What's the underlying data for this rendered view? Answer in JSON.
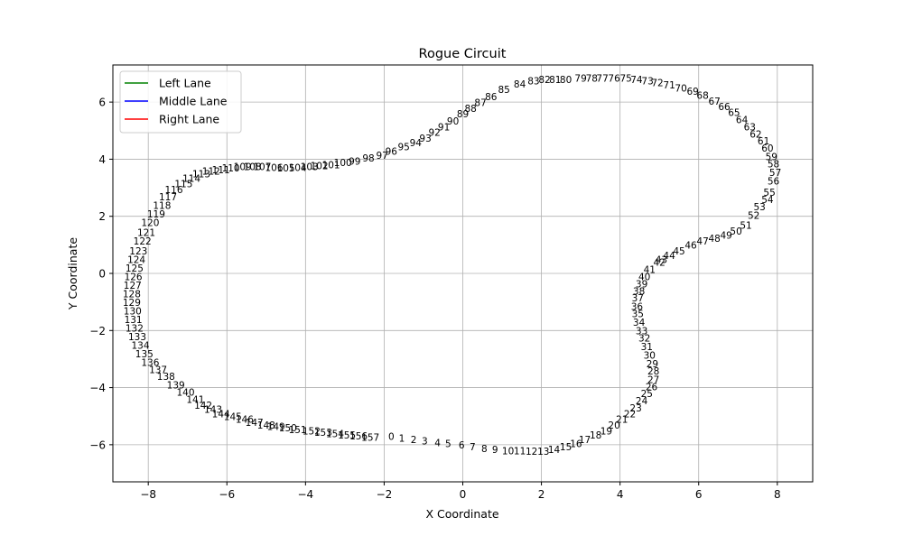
{
  "chart_data": {
    "type": "line",
    "title": "Rogue Circuit",
    "xlabel": "X Coordinate",
    "ylabel": "Y Coordinate",
    "xlim": [
      -8.9,
      8.9
    ],
    "ylim": [
      -7.3,
      7.3
    ],
    "xticks": [
      -8,
      -6,
      -4,
      -2,
      0,
      2,
      4,
      6,
      8
    ],
    "yticks": [
      -6,
      -4,
      -2,
      0,
      2,
      4,
      6
    ],
    "grid": true,
    "legend": "top-left",
    "series": [
      {
        "name": "Left Lane",
        "color": "#008000"
      },
      {
        "name": "Middle Lane",
        "color": "#0000ff"
      },
      {
        "name": "Right Lane",
        "color": "#ff0000"
      }
    ],
    "waypoint_x": [
      -1.82,
      -1.55,
      -1.25,
      -0.97,
      -0.64,
      -0.37,
      -0.03,
      0.25,
      0.55,
      0.82,
      1.15,
      1.45,
      1.75,
      2.05,
      2.32,
      2.62,
      2.88,
      3.1,
      3.38,
      3.65,
      3.85,
      4.05,
      4.25,
      4.4,
      4.55,
      4.68,
      4.8,
      4.85,
      4.85,
      4.82,
      4.75,
      4.68,
      4.62,
      4.55,
      4.48,
      4.45,
      4.43,
      4.45,
      4.48,
      4.55,
      4.62,
      4.75,
      5.0,
      5.05,
      5.25,
      5.5,
      5.8,
      6.1,
      6.4,
      6.7,
      6.95,
      7.2,
      7.4,
      7.55,
      7.75,
      7.8,
      7.9,
      7.95,
      7.9,
      7.85,
      7.75,
      7.65,
      7.45,
      7.3,
      7.1,
      6.9,
      6.65,
      6.4,
      6.1,
      5.85,
      5.55,
      5.25,
      4.95,
      4.7,
      4.42,
      4.15,
      3.85,
      3.55,
      3.28,
      3.0,
      2.62,
      2.35,
      2.08,
      1.8,
      1.45,
      1.05,
      0.72,
      0.45,
      0.2,
      0.0,
      -0.25,
      -0.48,
      -0.72,
      -0.95,
      -1.2,
      -1.5,
      -1.82,
      -2.05,
      -2.4,
      -2.75,
      -3.05,
      -3.35,
      -3.65,
      -3.9,
      -4.2,
      -4.5,
      -4.8,
      -5.1,
      -5.35,
      -5.6,
      -5.9,
      -6.15,
      -6.4,
      -6.65,
      -6.9,
      -7.1,
      -7.35,
      -7.5,
      -7.65,
      -7.8,
      -7.95,
      -8.05,
      -8.15,
      -8.25,
      -8.3,
      -8.35,
      -8.38,
      -8.4,
      -8.42,
      -8.42,
      -8.4,
      -8.38,
      -8.35,
      -8.28,
      -8.2,
      -8.1,
      -7.95,
      -7.75,
      -7.55,
      -7.3,
      -7.05,
      -6.8,
      -6.6,
      -6.35,
      -6.15,
      -5.85,
      -5.55,
      -5.3,
      -5.0,
      -4.75,
      -4.45,
      -4.2,
      -3.85,
      -3.55,
      -3.25,
      -2.95,
      -2.65,
      -2.35,
      -2.1
    ],
    "waypoint_y": [
      -5.9,
      -5.95,
      -6.0,
      -6.05,
      -6.12,
      -6.15,
      -6.2,
      -6.25,
      -6.32,
      -6.35,
      -6.4,
      -6.4,
      -6.42,
      -6.42,
      -6.35,
      -6.25,
      -6.15,
      -6.0,
      -5.85,
      -5.7,
      -5.5,
      -5.3,
      -5.1,
      -4.9,
      -4.65,
      -4.4,
      -4.15,
      -3.9,
      -3.6,
      -3.35,
      -3.05,
      -2.75,
      -2.45,
      -2.2,
      -1.9,
      -1.6,
      -1.35,
      -1.05,
      -0.8,
      -0.55,
      -0.3,
      -0.05,
      0.2,
      0.3,
      0.45,
      0.6,
      0.8,
      0.95,
      1.05,
      1.15,
      1.3,
      1.5,
      1.85,
      2.15,
      2.4,
      2.65,
      3.05,
      3.35,
      3.65,
      3.9,
      4.2,
      4.45,
      4.7,
      4.95,
      5.2,
      5.45,
      5.65,
      5.85,
      6.05,
      6.2,
      6.3,
      6.42,
      6.5,
      6.55,
      6.6,
      6.65,
      6.65,
      6.65,
      6.65,
      6.65,
      6.6,
      6.6,
      6.6,
      6.55,
      6.45,
      6.25,
      6.0,
      5.8,
      5.6,
      5.4,
      5.15,
      4.95,
      4.75,
      4.55,
      4.4,
      4.25,
      4.1,
      3.95,
      3.85,
      3.75,
      3.7,
      3.62,
      3.58,
      3.55,
      3.52,
      3.5,
      3.52,
      3.55,
      3.55,
      3.55,
      3.5,
      3.45,
      3.4,
      3.3,
      3.15,
      2.95,
      2.75,
      2.5,
      2.2,
      1.9,
      1.6,
      1.25,
      0.95,
      0.6,
      0.3,
      0.0,
      -0.3,
      -0.6,
      -0.9,
      -1.2,
      -1.5,
      -1.8,
      -2.1,
      -2.4,
      -2.7,
      -3.0,
      -3.3,
      -3.55,
      -3.8,
      -4.1,
      -4.35,
      -4.6,
      -4.8,
      -4.95,
      -5.1,
      -5.2,
      -5.3,
      -5.4,
      -5.5,
      -5.55,
      -5.6,
      -5.65,
      -5.7,
      -5.75,
      -5.8,
      -5.85,
      -5.88,
      -5.92
    ]
  }
}
